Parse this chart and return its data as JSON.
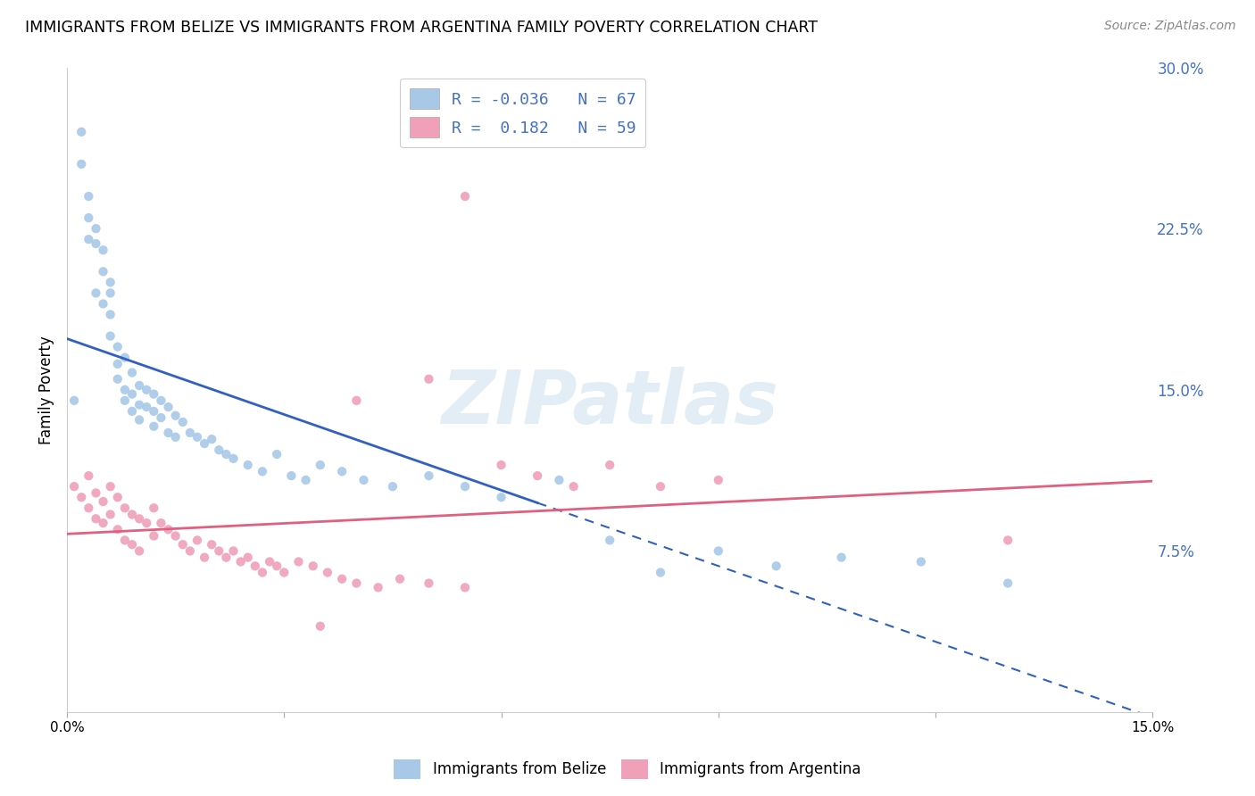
{
  "title": "IMMIGRANTS FROM BELIZE VS IMMIGRANTS FROM ARGENTINA FAMILY POVERTY CORRELATION CHART",
  "source": "Source: ZipAtlas.com",
  "ylabel": "Family Poverty",
  "right_yticks": [
    "30.0%",
    "22.5%",
    "15.0%",
    "7.5%"
  ],
  "right_ytick_vals": [
    0.3,
    0.225,
    0.15,
    0.075
  ],
  "xlim": [
    0.0,
    0.15
  ],
  "ylim": [
    0.0,
    0.3
  ],
  "belize_R": -0.036,
  "belize_N": 67,
  "argentina_R": 0.182,
  "argentina_N": 59,
  "belize_color": "#a8c8e8",
  "argentina_color": "#f0a0b8",
  "belize_line_color": "#3060c0",
  "argentina_line_color": "#e06080",
  "belize_line_solid_end": 0.065,
  "watermark": "ZIPatlas",
  "background_color": "#ffffff",
  "grid_color": "#cccccc",
  "belize_x": [
    0.001,
    0.002,
    0.002,
    0.003,
    0.003,
    0.003,
    0.004,
    0.004,
    0.004,
    0.005,
    0.005,
    0.005,
    0.006,
    0.006,
    0.006,
    0.006,
    0.007,
    0.007,
    0.007,
    0.008,
    0.008,
    0.008,
    0.009,
    0.009,
    0.009,
    0.01,
    0.01,
    0.01,
    0.011,
    0.011,
    0.012,
    0.012,
    0.012,
    0.013,
    0.013,
    0.014,
    0.014,
    0.015,
    0.015,
    0.016,
    0.017,
    0.018,
    0.019,
    0.02,
    0.021,
    0.022,
    0.023,
    0.025,
    0.027,
    0.029,
    0.031,
    0.033,
    0.035,
    0.038,
    0.041,
    0.045,
    0.05,
    0.055,
    0.06,
    0.068,
    0.075,
    0.082,
    0.09,
    0.098,
    0.107,
    0.118,
    0.13
  ],
  "belize_y": [
    0.145,
    0.27,
    0.255,
    0.24,
    0.23,
    0.22,
    0.225,
    0.218,
    0.195,
    0.215,
    0.205,
    0.19,
    0.2,
    0.195,
    0.185,
    0.175,
    0.17,
    0.162,
    0.155,
    0.165,
    0.15,
    0.145,
    0.158,
    0.148,
    0.14,
    0.152,
    0.143,
    0.136,
    0.15,
    0.142,
    0.148,
    0.14,
    0.133,
    0.145,
    0.137,
    0.142,
    0.13,
    0.138,
    0.128,
    0.135,
    0.13,
    0.128,
    0.125,
    0.127,
    0.122,
    0.12,
    0.118,
    0.115,
    0.112,
    0.12,
    0.11,
    0.108,
    0.115,
    0.112,
    0.108,
    0.105,
    0.11,
    0.105,
    0.1,
    0.108,
    0.08,
    0.065,
    0.075,
    0.068,
    0.072,
    0.07,
    0.06
  ],
  "argentina_x": [
    0.001,
    0.002,
    0.003,
    0.003,
    0.004,
    0.004,
    0.005,
    0.005,
    0.006,
    0.006,
    0.007,
    0.007,
    0.008,
    0.008,
    0.009,
    0.009,
    0.01,
    0.01,
    0.011,
    0.012,
    0.012,
    0.013,
    0.014,
    0.015,
    0.016,
    0.017,
    0.018,
    0.019,
    0.02,
    0.021,
    0.022,
    0.023,
    0.024,
    0.025,
    0.026,
    0.027,
    0.028,
    0.029,
    0.03,
    0.032,
    0.034,
    0.036,
    0.038,
    0.04,
    0.043,
    0.046,
    0.05,
    0.055,
    0.06,
    0.065,
    0.07,
    0.075,
    0.082,
    0.09,
    0.05,
    0.04,
    0.035,
    0.13,
    0.055
  ],
  "argentina_y": [
    0.105,
    0.1,
    0.11,
    0.095,
    0.102,
    0.09,
    0.098,
    0.088,
    0.105,
    0.092,
    0.1,
    0.085,
    0.095,
    0.08,
    0.092,
    0.078,
    0.09,
    0.075,
    0.088,
    0.095,
    0.082,
    0.088,
    0.085,
    0.082,
    0.078,
    0.075,
    0.08,
    0.072,
    0.078,
    0.075,
    0.072,
    0.075,
    0.07,
    0.072,
    0.068,
    0.065,
    0.07,
    0.068,
    0.065,
    0.07,
    0.068,
    0.065,
    0.062,
    0.06,
    0.058,
    0.062,
    0.06,
    0.058,
    0.115,
    0.11,
    0.105,
    0.115,
    0.105,
    0.108,
    0.155,
    0.145,
    0.04,
    0.08,
    0.24
  ]
}
